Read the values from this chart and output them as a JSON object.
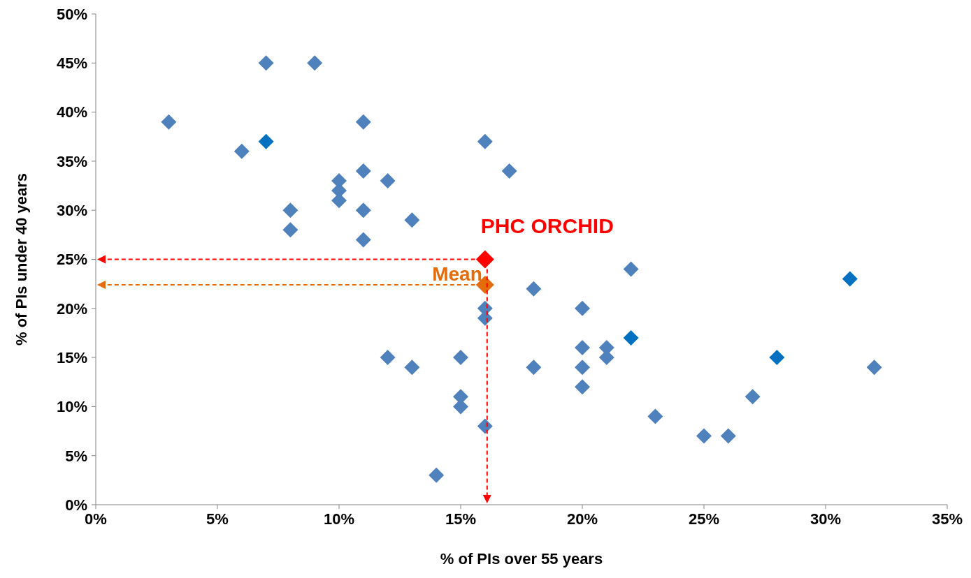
{
  "chart_data": {
    "type": "scatter",
    "xlabel": "% of PIs over 55 years",
    "ylabel": "% of PIs under 40 years",
    "xlim": [
      0,
      35
    ],
    "xticks": [
      {
        "value": 0,
        "label": "0%"
      },
      {
        "value": 5,
        "label": "5%"
      },
      {
        "value": 10,
        "label": "10%"
      },
      {
        "value": 15,
        "label": "15%"
      },
      {
        "value": 20,
        "label": "20%"
      },
      {
        "value": 25,
        "label": "25%"
      },
      {
        "value": 30,
        "label": "30%"
      },
      {
        "value": 35,
        "label": "35%"
      }
    ],
    "ylim": [
      0,
      50
    ],
    "yticks": [
      {
        "value": 0,
        "label": "0%"
      },
      {
        "value": 5,
        "label": "5%"
      },
      {
        "value": 10,
        "label": "10%"
      },
      {
        "value": 15,
        "label": "15%"
      },
      {
        "value": 20,
        "label": "20%"
      },
      {
        "value": 25,
        "label": "25%"
      },
      {
        "value": 30,
        "label": "30%"
      },
      {
        "value": 35,
        "label": "35%"
      },
      {
        "value": 40,
        "label": "40%"
      },
      {
        "value": 45,
        "label": "45%"
      },
      {
        "value": 50,
        "label": "50%"
      }
    ],
    "grid": false,
    "legend": false,
    "marker": "diamond",
    "series": [
      {
        "x": [
          3,
          7,
          9,
          6,
          7,
          10,
          10,
          10,
          11,
          11,
          11,
          11,
          8,
          8,
          12,
          13,
          16,
          17,
          16,
          16,
          18,
          22,
          31,
          20,
          20,
          20,
          20,
          21,
          21,
          22,
          18,
          12,
          13,
          15,
          15,
          15,
          16,
          14,
          23,
          25,
          26,
          27,
          28,
          32
        ],
        "values": [
          39,
          45,
          45,
          36,
          37,
          33,
          32,
          31,
          39,
          34,
          30,
          27,
          30,
          28,
          33,
          29,
          37,
          34,
          20,
          19,
          22,
          24,
          23,
          20,
          16,
          14,
          12,
          16,
          15,
          17,
          14,
          15,
          14,
          15,
          11,
          10,
          8,
          3,
          9,
          7,
          7,
          11,
          15,
          14
        ],
        "colors": [
          "#4f81bd",
          "#4f81bd",
          "#4f81bd",
          "#4f81bd",
          "#0070c0",
          "#4f81bd",
          "#4f81bd",
          "#4f81bd",
          "#4f81bd",
          "#4f81bd",
          "#4f81bd",
          "#4f81bd",
          "#4f81bd",
          "#4f81bd",
          "#4f81bd",
          "#4f81bd",
          "#4f81bd",
          "#4f81bd",
          "#4f81bd",
          "#4f81bd",
          "#4f81bd",
          "#4f81bd",
          "#0070c0",
          "#4f81bd",
          "#4f81bd",
          "#4f81bd",
          "#4f81bd",
          "#4f81bd",
          "#4f81bd",
          "#0070c0",
          "#4f81bd",
          "#4f81bd",
          "#4f81bd",
          "#4f81bd",
          "#4f81bd",
          "#4f81bd",
          "#4f81bd",
          "#4f81bd",
          "#4f81bd",
          "#4f81bd",
          "#4f81bd",
          "#4f81bd",
          "#0070c0",
          "#4f81bd"
        ]
      },
      {
        "name": "Mean",
        "x": [
          16
        ],
        "values": [
          22.4
        ],
        "color": "#e46c0a"
      },
      {
        "name": "PHC ORCHID",
        "x": [
          16
        ],
        "values": [
          25
        ],
        "color": "#ff0000"
      }
    ]
  }
}
